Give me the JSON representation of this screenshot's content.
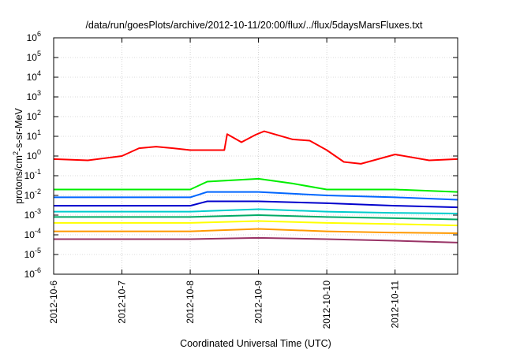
{
  "chart_data": {
    "type": "line",
    "title": "/data/run/goesPlots/archive/2012-10-11/20:00/flux/../flux/5daysMarsFluxes.txt",
    "xlabel": "Coordinated Universal Time (UTC)",
    "ylabel": {
      "base": "protons/cm",
      "sup": "2",
      "rest": "-s-sr-MeV"
    },
    "yscale": "log",
    "ylim": [
      1e-06,
      1000000.0
    ],
    "xlim": [
      "2012-10-06",
      "2012-10-11 22:00"
    ],
    "x_ticks": [
      "2012-10-6",
      "2012-10-7",
      "2012-10-8",
      "2012-10-9",
      "2012-10-10",
      "2012-10-11"
    ],
    "y_ticks": [
      {
        "base": "10",
        "exp": "-6"
      },
      {
        "base": "10",
        "exp": "-5"
      },
      {
        "base": "10",
        "exp": "-4"
      },
      {
        "base": "10",
        "exp": "-3"
      },
      {
        "base": "10",
        "exp": "-2"
      },
      {
        "base": "10",
        "exp": "-1"
      },
      {
        "base": "10",
        "exp": "0"
      },
      {
        "base": "10",
        "exp": "1"
      },
      {
        "base": "10",
        "exp": "2"
      },
      {
        "base": "10",
        "exp": "3"
      },
      {
        "base": "10",
        "exp": "4"
      },
      {
        "base": "10",
        "exp": "5"
      },
      {
        "base": "10",
        "exp": "6"
      }
    ],
    "grid": true,
    "series": [
      {
        "color": "#ff0000",
        "points": [
          [
            "2012-10-06 00:00",
            0.7
          ],
          [
            "2012-10-06 12:00",
            0.6
          ],
          [
            "2012-10-07 00:00",
            1.0
          ],
          [
            "2012-10-07 06:00",
            2.5
          ],
          [
            "2012-10-07 12:00",
            3.0
          ],
          [
            "2012-10-07 18:00",
            2.5
          ],
          [
            "2012-10-08 00:00",
            2.0
          ],
          [
            "2012-10-08 12:00",
            2.0
          ],
          [
            "2012-10-08 13:00",
            13
          ],
          [
            "2012-10-08 18:00",
            5.0
          ],
          [
            "2012-10-08 23:00",
            12
          ],
          [
            "2012-10-09 02:00",
            18
          ],
          [
            "2012-10-09 12:00",
            7.0
          ],
          [
            "2012-10-09 18:00",
            6.0
          ],
          [
            "2012-10-10 00:00",
            2.0
          ],
          [
            "2012-10-10 06:00",
            0.5
          ],
          [
            "2012-10-10 12:00",
            0.4
          ],
          [
            "2012-10-11 00:00",
            1.2
          ],
          [
            "2012-10-11 12:00",
            0.6
          ],
          [
            "2012-10-11 22:00",
            0.7
          ]
        ]
      },
      {
        "color": "#00ee00",
        "points": [
          [
            "2012-10-06 00:00",
            0.02
          ],
          [
            "2012-10-07 00:00",
            0.02
          ],
          [
            "2012-10-08 00:00",
            0.02
          ],
          [
            "2012-10-08 06:00",
            0.05
          ],
          [
            "2012-10-09 00:00",
            0.07
          ],
          [
            "2012-10-09 12:00",
            0.04
          ],
          [
            "2012-10-10 00:00",
            0.02
          ],
          [
            "2012-10-11 00:00",
            0.02
          ],
          [
            "2012-10-11 22:00",
            0.015
          ]
        ]
      },
      {
        "color": "#0066ff",
        "points": [
          [
            "2012-10-06 00:00",
            0.008
          ],
          [
            "2012-10-07 00:00",
            0.008
          ],
          [
            "2012-10-08 00:00",
            0.008
          ],
          [
            "2012-10-08 06:00",
            0.015
          ],
          [
            "2012-10-09 00:00",
            0.015
          ],
          [
            "2012-10-10 00:00",
            0.01
          ],
          [
            "2012-10-11 00:00",
            0.008
          ],
          [
            "2012-10-11 22:00",
            0.006
          ]
        ]
      },
      {
        "color": "#0000cc",
        "points": [
          [
            "2012-10-06 00:00",
            0.003
          ],
          [
            "2012-10-07 00:00",
            0.003
          ],
          [
            "2012-10-08 00:00",
            0.003
          ],
          [
            "2012-10-08 06:00",
            0.005
          ],
          [
            "2012-10-09 00:00",
            0.005
          ],
          [
            "2012-10-10 00:00",
            0.004
          ],
          [
            "2012-10-11 00:00",
            0.003
          ],
          [
            "2012-10-11 22:00",
            0.0025
          ]
        ]
      },
      {
        "color": "#00cccc",
        "points": [
          [
            "2012-10-06 00:00",
            0.0015
          ],
          [
            "2012-10-07 00:00",
            0.0015
          ],
          [
            "2012-10-08 00:00",
            0.0015
          ],
          [
            "2012-10-09 00:00",
            0.002
          ],
          [
            "2012-10-10 00:00",
            0.0015
          ],
          [
            "2012-10-11 00:00",
            0.0013
          ],
          [
            "2012-10-11 22:00",
            0.0012
          ]
        ]
      },
      {
        "color": "#00aa66",
        "points": [
          [
            "2012-10-06 00:00",
            0.0008
          ],
          [
            "2012-10-07 00:00",
            0.0008
          ],
          [
            "2012-10-08 00:00",
            0.0008
          ],
          [
            "2012-10-09 00:00",
            0.001
          ],
          [
            "2012-10-10 00:00",
            0.0008
          ],
          [
            "2012-10-11 00:00",
            0.0007
          ],
          [
            "2012-10-11 22:00",
            0.0006
          ]
        ]
      },
      {
        "color": "#ffff00",
        "points": [
          [
            "2012-10-06 00:00",
            0.0004
          ],
          [
            "2012-10-07 00:00",
            0.0004
          ],
          [
            "2012-10-08 00:00",
            0.0004
          ],
          [
            "2012-10-09 00:00",
            0.0005
          ],
          [
            "2012-10-10 00:00",
            0.0004
          ],
          [
            "2012-10-11 00:00",
            0.00035
          ],
          [
            "2012-10-11 22:00",
            0.0003
          ]
        ]
      },
      {
        "color": "#ff9900",
        "points": [
          [
            "2012-10-06 00:00",
            0.00015
          ],
          [
            "2012-10-07 00:00",
            0.00015
          ],
          [
            "2012-10-08 00:00",
            0.00015
          ],
          [
            "2012-10-09 00:00",
            0.0002
          ],
          [
            "2012-10-10 00:00",
            0.00015
          ],
          [
            "2012-10-11 00:00",
            0.00013
          ],
          [
            "2012-10-11 22:00",
            0.00012
          ]
        ]
      },
      {
        "color": "#993366",
        "points": [
          [
            "2012-10-06 00:00",
            6e-05
          ],
          [
            "2012-10-07 00:00",
            6e-05
          ],
          [
            "2012-10-08 00:00",
            6e-05
          ],
          [
            "2012-10-09 00:00",
            7e-05
          ],
          [
            "2012-10-10 00:00",
            6e-05
          ],
          [
            "2012-10-11 00:00",
            5e-05
          ],
          [
            "2012-10-11 22:00",
            4e-05
          ]
        ]
      }
    ]
  }
}
